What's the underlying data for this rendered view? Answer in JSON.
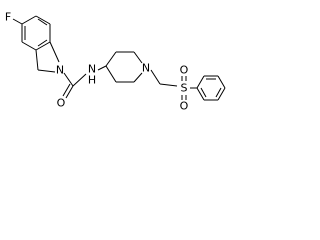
{
  "atoms": [
    {
      "label": "F"
    },
    {
      "label": "N"
    },
    {
      "label": "O"
    },
    {
      "label": "N"
    },
    {
      "label": "H"
    },
    {
      "label": "N"
    },
    {
      "label": "S"
    },
    {
      "label": "O"
    },
    {
      "label": "O"
    }
  ]
}
